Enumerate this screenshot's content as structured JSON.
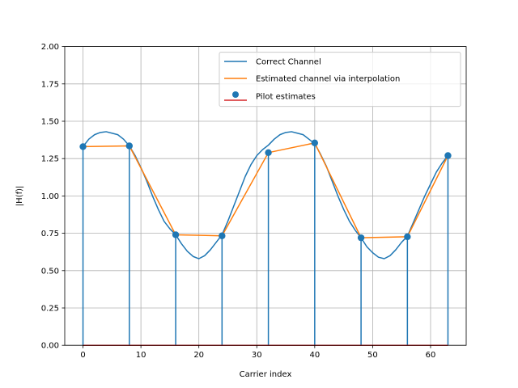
{
  "chart_data": {
    "type": "line",
    "title": "",
    "xlabel": "Carrier index",
    "ylabel": "|H(f)|",
    "xlim": [
      -3.15,
      66.15
    ],
    "ylim": [
      0,
      2.0
    ],
    "xticks": [
      0,
      10,
      20,
      30,
      40,
      50,
      60
    ],
    "yticks": [
      "0.00",
      "0.25",
      "0.50",
      "0.75",
      "1.00",
      "1.25",
      "1.50",
      "1.75",
      "2.00"
    ],
    "grid": true,
    "legend_position": "top-right",
    "colors": {
      "correct": "#1f77b4",
      "estimated": "#ff7f0e",
      "pilot_marker": "#1f77b4",
      "pilot_baseline": "#d62728"
    },
    "series": [
      {
        "name": "Correct Channel",
        "kind": "line",
        "x": [
          0,
          1,
          2,
          3,
          4,
          5,
          6,
          7,
          8,
          9,
          10,
          11,
          12,
          13,
          14,
          15,
          16,
          17,
          18,
          19,
          20,
          21,
          22,
          23,
          24,
          25,
          26,
          27,
          28,
          29,
          30,
          31,
          32,
          33,
          34,
          35,
          36,
          37,
          38,
          39,
          40,
          41,
          42,
          43,
          44,
          45,
          46,
          47,
          48,
          49,
          50,
          51,
          52,
          53,
          54,
          55,
          56,
          57,
          58,
          59,
          60,
          61,
          62,
          63
        ],
        "y": [
          1.33,
          1.38,
          1.41,
          1.425,
          1.43,
          1.42,
          1.41,
          1.38,
          1.335,
          1.27,
          1.19,
          1.1,
          1.0,
          0.91,
          0.83,
          0.78,
          0.74,
          0.68,
          0.63,
          0.595,
          0.58,
          0.6,
          0.64,
          0.69,
          0.74,
          0.83,
          0.93,
          1.03,
          1.13,
          1.21,
          1.27,
          1.31,
          1.34,
          1.38,
          1.41,
          1.425,
          1.43,
          1.42,
          1.41,
          1.38,
          1.35,
          1.28,
          1.2,
          1.1,
          1.0,
          0.91,
          0.83,
          0.77,
          0.72,
          0.66,
          0.62,
          0.59,
          0.58,
          0.6,
          0.64,
          0.69,
          0.73,
          0.82,
          0.91,
          1.0,
          1.08,
          1.16,
          1.22,
          1.27
        ]
      },
      {
        "name": "Estimated channel via interpolation",
        "kind": "line",
        "x": [
          0,
          8,
          16,
          24,
          32,
          40,
          48,
          56,
          63
        ],
        "y": [
          1.33,
          1.335,
          0.74,
          0.733,
          1.29,
          1.355,
          0.72,
          0.727,
          1.27
        ]
      },
      {
        "name": "Pilot estimates",
        "kind": "stem",
        "x": [
          0,
          8,
          16,
          24,
          32,
          40,
          48,
          56,
          63
        ],
        "y": [
          1.33,
          1.335,
          0.74,
          0.733,
          1.29,
          1.355,
          0.72,
          0.727,
          1.27
        ]
      }
    ]
  }
}
